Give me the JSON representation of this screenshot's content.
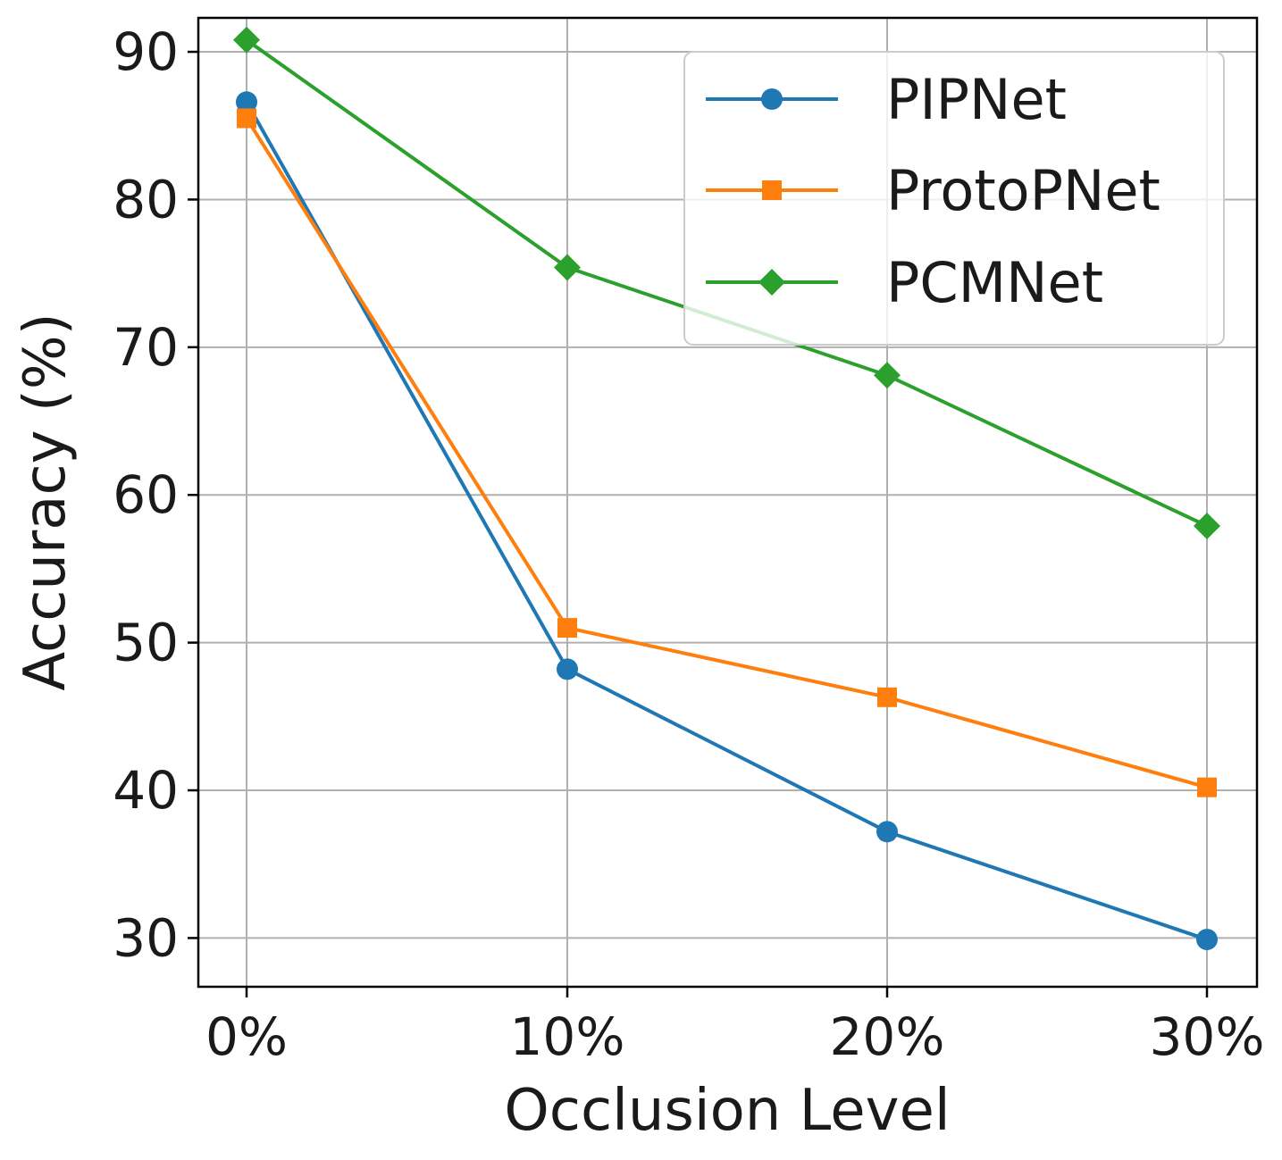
{
  "chart_data": {
    "type": "line",
    "title": "",
    "xlabel": "Occlusion Level",
    "ylabel": "Accuracy (%)",
    "categories": [
      "0%",
      "10%",
      "20%",
      "30%"
    ],
    "ylim": [
      26.7,
      92.3
    ],
    "yticks": [
      30,
      40,
      50,
      60,
      70,
      80,
      90
    ],
    "grid": true,
    "legend_position": "top-right",
    "series": [
      {
        "name": "PIPNet",
        "color": "#1f77b4",
        "marker": "circle",
        "values": [
          86.6,
          48.2,
          37.2,
          29.9
        ]
      },
      {
        "name": "ProtoPNet",
        "color": "#ff7f0e",
        "marker": "square",
        "values": [
          85.5,
          51.0,
          46.3,
          40.2
        ]
      },
      {
        "name": "PCMNet",
        "color": "#2ca02c",
        "marker": "diamond",
        "values": [
          90.8,
          75.4,
          68.1,
          57.9
        ]
      }
    ]
  }
}
